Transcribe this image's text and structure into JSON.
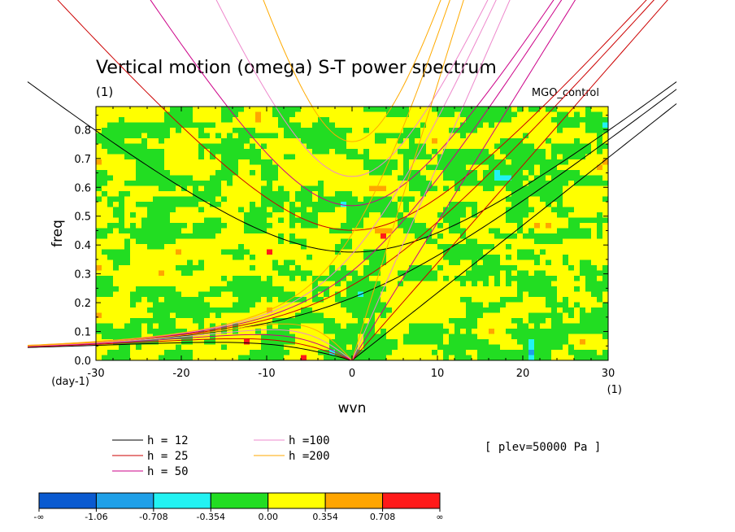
{
  "chart_data": {
    "type": "heatmap",
    "title": "Vertical motion (omega) S-T power spectrum",
    "units_label": "(1)",
    "experiment": "MGO_control",
    "xlabel": "wvn",
    "ylabel": "freq",
    "x_unit": "(1)",
    "y_unit": "(day-1)",
    "xlim": [
      -30,
      30
    ],
    "ylim": [
      0.0,
      0.88
    ],
    "x_ticks": [
      "-30",
      "-20",
      "-10",
      "0",
      "10",
      "20",
      "30"
    ],
    "y_ticks": [
      "0.0",
      "0.1",
      "0.2",
      "0.3",
      "0.4",
      "0.5",
      "0.6",
      "0.7",
      "0.8"
    ],
    "level_note": "[ plev=50000 Pa ]",
    "colorbar": {
      "labels": [
        "-∞",
        "-1.06",
        "-0.708",
        "-0.354",
        "0.00",
        "0.354",
        "0.708",
        "∞"
      ],
      "colors": [
        "#0a5ad0",
        "#1fa0e8",
        "#22f2f2",
        "#22dd22",
        "#ffff00",
        "#ffa500",
        "#ff1a1a"
      ]
    },
    "dispersion_curves": [
      {
        "name": "h = 12",
        "color": "#000000",
        "equivalent_depth": 12
      },
      {
        "name": "h = 25",
        "color": "#cc0000",
        "equivalent_depth": 25
      },
      {
        "name": "h = 50",
        "color": "#cc0088",
        "equivalent_depth": 50
      },
      {
        "name": "h =100",
        "color": "#ee88cc",
        "equivalent_depth": 100
      },
      {
        "name": "h =200",
        "color": "#ffaa00",
        "equivalent_depth": 200
      }
    ]
  }
}
